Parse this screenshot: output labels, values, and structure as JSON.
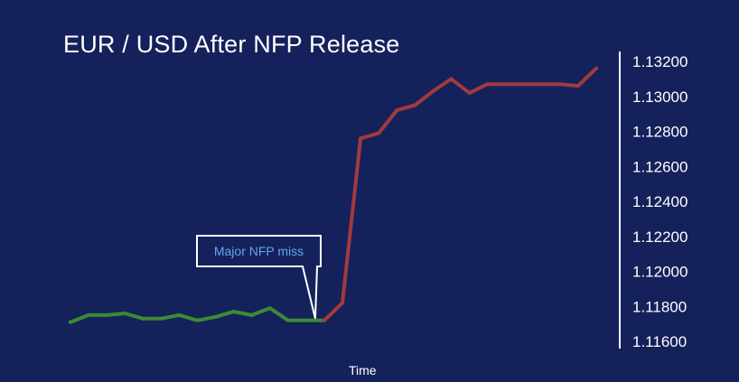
{
  "chart_data": {
    "type": "line",
    "title": "EUR / USD After NFP Release",
    "xlabel": "Time",
    "ylabel": "",
    "ylim": [
      1.116,
      1.132
    ],
    "yticks": [
      "1.11600",
      "1.11800",
      "1.12000",
      "1.12200",
      "1.12400",
      "1.12600",
      "1.12800",
      "1.13000",
      "1.13200"
    ],
    "ytick_values": [
      1.116,
      1.118,
      1.12,
      1.122,
      1.124,
      1.126,
      1.128,
      1.13,
      1.132
    ],
    "y_axis_position": "right",
    "grid": false,
    "legend": "none",
    "x": [
      0,
      1,
      2,
      3,
      4,
      5,
      6,
      7,
      8,
      9,
      10,
      11,
      12,
      13,
      14,
      15,
      16,
      17,
      18,
      19,
      20,
      21,
      22,
      23,
      24,
      25,
      26,
      27,
      28,
      29
    ],
    "series": [
      {
        "color": "#3d8a35",
        "x": [
          0,
          1,
          2,
          3,
          4,
          5,
          6,
          7,
          8,
          9,
          10,
          11,
          12,
          13,
          14
        ],
        "values": [
          1.1171,
          1.1175,
          1.1175,
          1.1176,
          1.1173,
          1.1173,
          1.1175,
          1.1172,
          1.1174,
          1.1177,
          1.1175,
          1.1179,
          1.1172,
          1.1172,
          1.1172
        ]
      },
      {
        "color": "#a23a3e",
        "x": [
          14,
          15,
          16,
          17,
          18,
          19,
          20,
          21,
          22,
          23,
          24,
          25,
          26,
          27,
          28,
          29
        ],
        "values": [
          1.1172,
          1.1182,
          1.1276,
          1.1279,
          1.1292,
          1.1295,
          1.1303,
          1.131,
          1.1302,
          1.1307,
          1.1307,
          1.1307,
          1.1307,
          1.1307,
          1.1306,
          1.1316
        ]
      }
    ],
    "annotations": [
      {
        "text": "Major NFP miss",
        "x": 14,
        "y": 1.1172
      }
    ]
  },
  "colors": {
    "background": "#15215b",
    "axis": "#ffffff",
    "callout_text": "#5ea8ee",
    "before_release": "#3d8a35",
    "after_release": "#a23a3e"
  }
}
